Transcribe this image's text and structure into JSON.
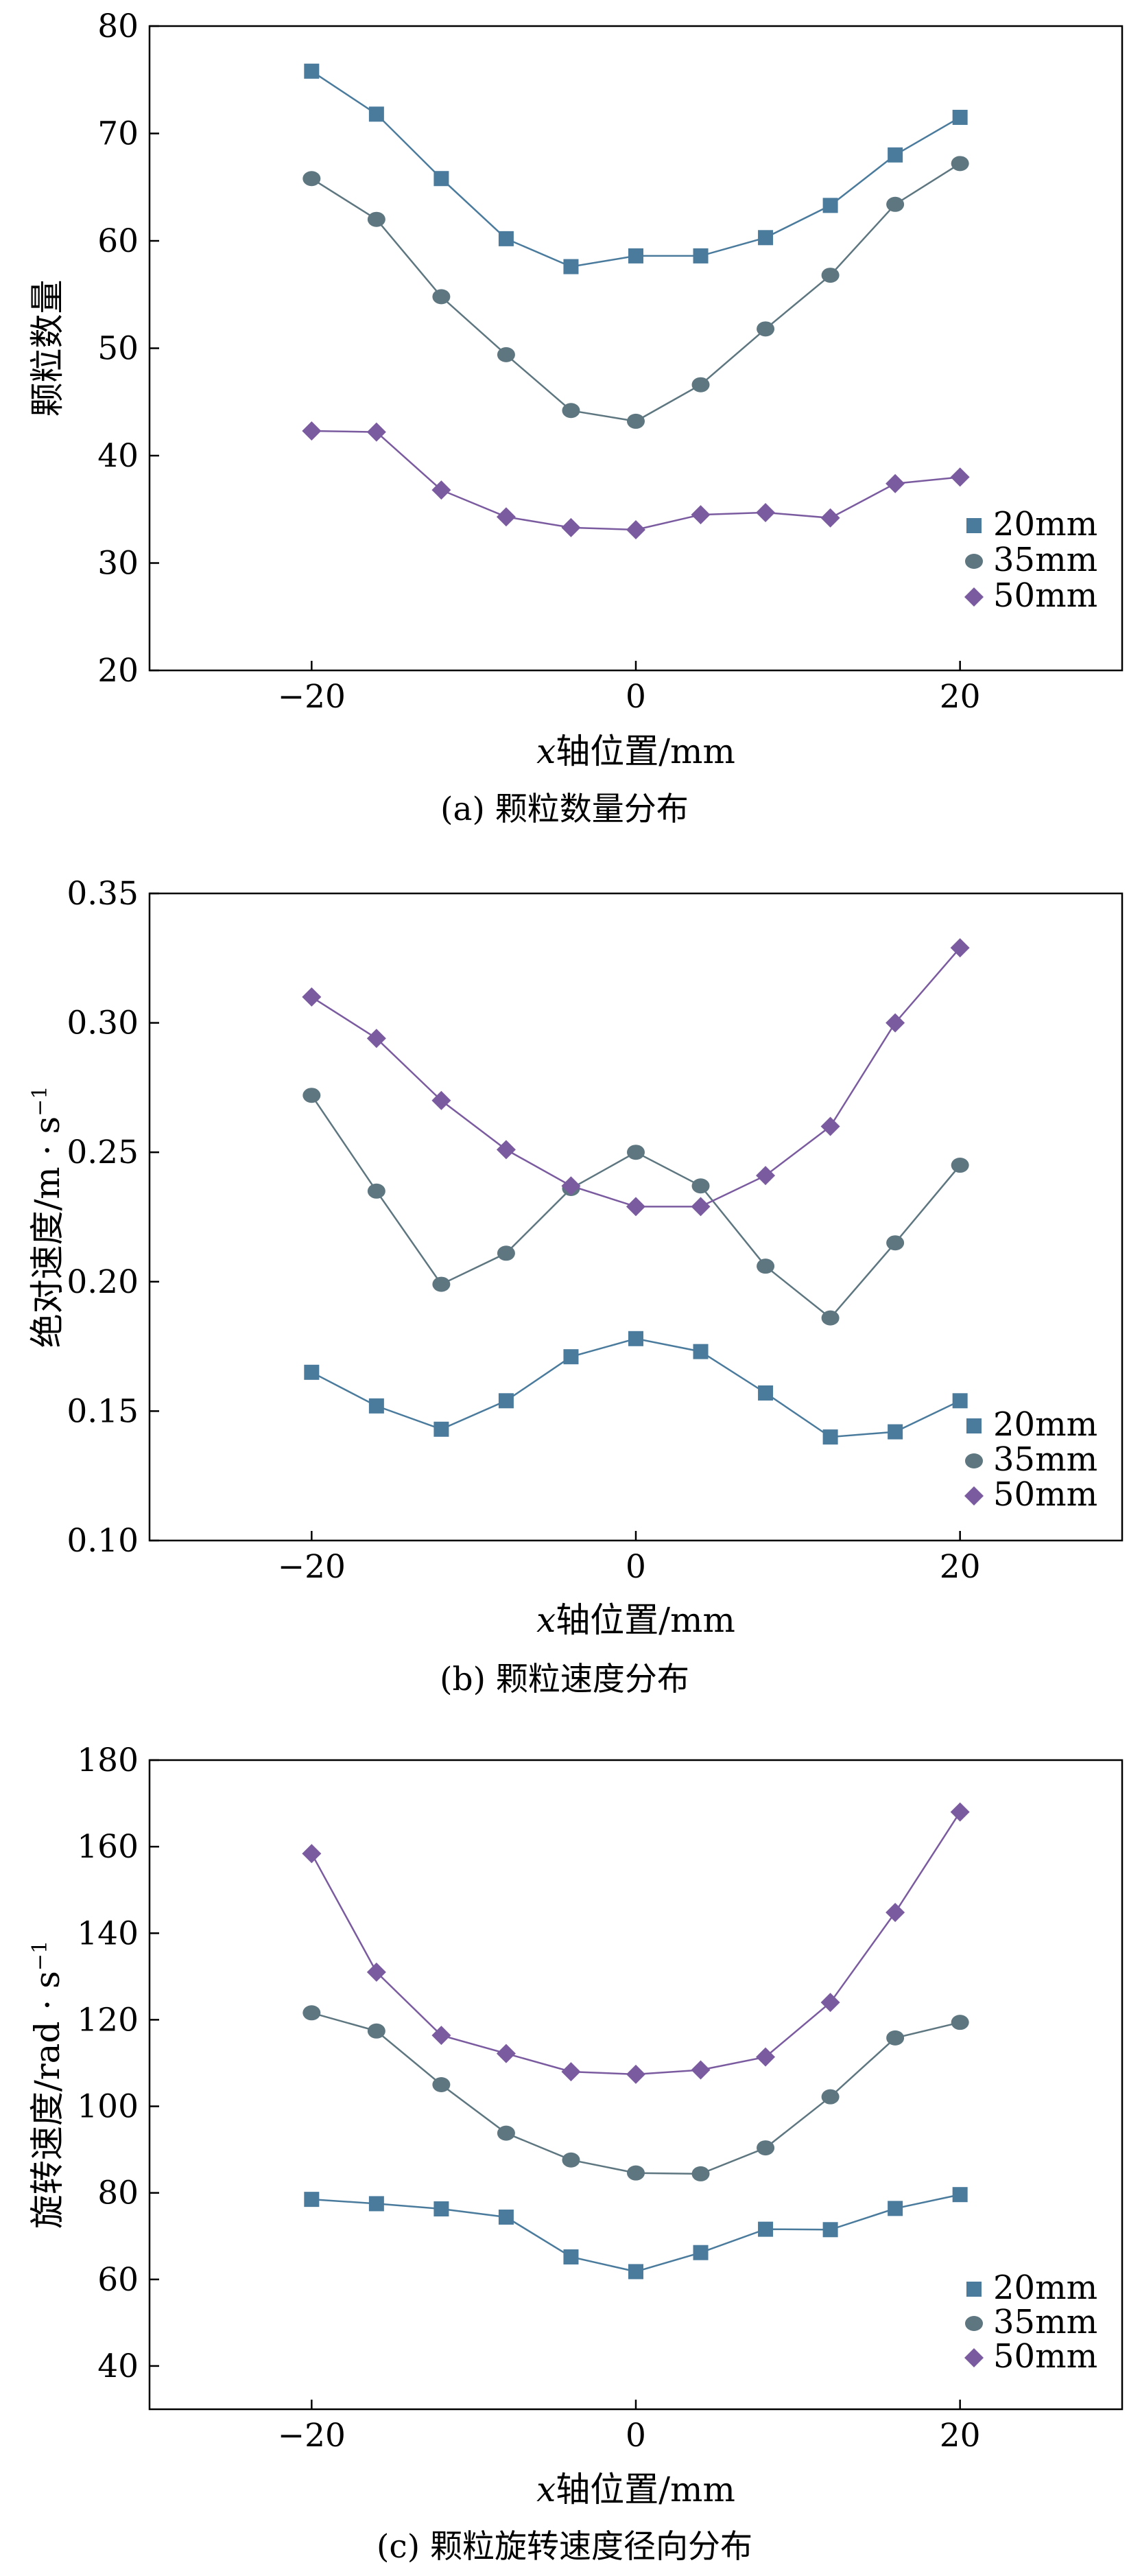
{
  "chart_data": [
    {
      "type": "line",
      "caption": "(a) 颗粒数量分布",
      "xlabel_italic": "x",
      "xlabel_rest": "轴位置/mm",
      "ylabel": "颗粒数量",
      "xlim": [
        -30,
        30
      ],
      "ylim": [
        20,
        80
      ],
      "xticks": [
        -20,
        0,
        20
      ],
      "xtick_labels": [
        "−20",
        "0",
        "20"
      ],
      "yticks": [
        20,
        30,
        40,
        50,
        60,
        70,
        80
      ],
      "ytick_labels": [
        "20",
        "30",
        "40",
        "50",
        "60",
        "70",
        "80"
      ],
      "legend_position": "bottom-right",
      "x": [
        -20,
        -16,
        -12,
        -8,
        -4,
        0,
        4,
        8,
        12,
        16,
        20
      ],
      "series": [
        {
          "name": "20mm",
          "marker": "square",
          "color": "#4a7b9d",
          "values": [
            75.8,
            71.8,
            65.8,
            60.2,
            57.6,
            58.6,
            58.6,
            60.3,
            63.3,
            68.0,
            71.5
          ]
        },
        {
          "name": "35mm",
          "marker": "circle",
          "color": "#5d7680",
          "values": [
            65.8,
            62.0,
            54.8,
            49.4,
            44.2,
            43.2,
            46.6,
            51.8,
            56.8,
            63.4,
            67.2
          ]
        },
        {
          "name": "50mm",
          "marker": "diamond",
          "color": "#7b5ba0",
          "values": [
            42.3,
            42.2,
            36.8,
            34.3,
            33.3,
            33.1,
            34.5,
            34.7,
            34.2,
            37.4,
            38.0
          ]
        }
      ]
    },
    {
      "type": "line",
      "caption": "(b) 颗粒速度分布",
      "xlabel_italic": "x",
      "xlabel_rest": "轴位置/mm",
      "ylabel": "绝对速度/m · s",
      "ylabel_sup": "−1",
      "xlim": [
        -30,
        30
      ],
      "ylim": [
        0.1,
        0.35
      ],
      "xticks": [
        -20,
        0,
        20
      ],
      "xtick_labels": [
        "−20",
        "0",
        "20"
      ],
      "yticks": [
        0.1,
        0.15,
        0.2,
        0.25,
        0.3,
        0.35
      ],
      "ytick_labels": [
        "0.10",
        "0.15",
        "0.20",
        "0.25",
        "0.30",
        "0.35"
      ],
      "legend_position": "bottom-right",
      "x": [
        -20,
        -16,
        -12,
        -8,
        -4,
        0,
        4,
        8,
        12,
        16,
        20
      ],
      "series": [
        {
          "name": "20mm",
          "marker": "square",
          "color": "#4a7b9d",
          "values": [
            0.165,
            0.152,
            0.143,
            0.154,
            0.171,
            0.178,
            0.173,
            0.157,
            0.14,
            0.142,
            0.154
          ]
        },
        {
          "name": "35mm",
          "marker": "circle",
          "color": "#5d7680",
          "values": [
            0.272,
            0.235,
            0.199,
            0.211,
            0.236,
            0.25,
            0.237,
            0.206,
            0.186,
            0.215,
            0.245
          ]
        },
        {
          "name": "50mm",
          "marker": "diamond",
          "color": "#7b5ba0",
          "values": [
            0.31,
            0.294,
            0.27,
            0.251,
            0.237,
            0.229,
            0.229,
            0.241,
            0.26,
            0.3,
            0.329
          ]
        }
      ]
    },
    {
      "type": "line",
      "caption": "(c) 颗粒旋转速度径向分布",
      "xlabel_italic": "x",
      "xlabel_rest": "轴位置/mm",
      "ylabel": "旋转速度/rad · s",
      "ylabel_sup": "−1",
      "xlim": [
        -30,
        30
      ],
      "ylim": [
        30,
        180
      ],
      "xticks": [
        -20,
        0,
        20
      ],
      "xtick_labels": [
        "−20",
        "0",
        "20"
      ],
      "yticks": [
        40,
        60,
        80,
        100,
        120,
        140,
        160,
        180
      ],
      "ytick_labels": [
        "40",
        "60",
        "80",
        "100",
        "120",
        "140",
        "160",
        "180"
      ],
      "legend_position": "bottom-right",
      "x": [
        -20,
        -16,
        -12,
        -8,
        -4,
        0,
        4,
        8,
        12,
        16,
        20
      ],
      "series": [
        {
          "name": "20mm",
          "marker": "square",
          "color": "#4a7b9d",
          "values": [
            78.5,
            77.5,
            76.3,
            74.4,
            65.2,
            61.8,
            66.2,
            71.6,
            71.5,
            76.4,
            79.6
          ]
        },
        {
          "name": "35mm",
          "marker": "circle",
          "color": "#5d7680",
          "values": [
            121.6,
            117.4,
            105.0,
            93.8,
            87.6,
            84.6,
            84.4,
            90.4,
            102.2,
            115.8,
            119.4
          ]
        },
        {
          "name": "50mm",
          "marker": "diamond",
          "color": "#7b5ba0",
          "values": [
            158.4,
            131.0,
            116.4,
            112.2,
            108.0,
            107.4,
            108.4,
            111.4,
            124.0,
            144.8,
            168.0
          ]
        }
      ]
    }
  ]
}
